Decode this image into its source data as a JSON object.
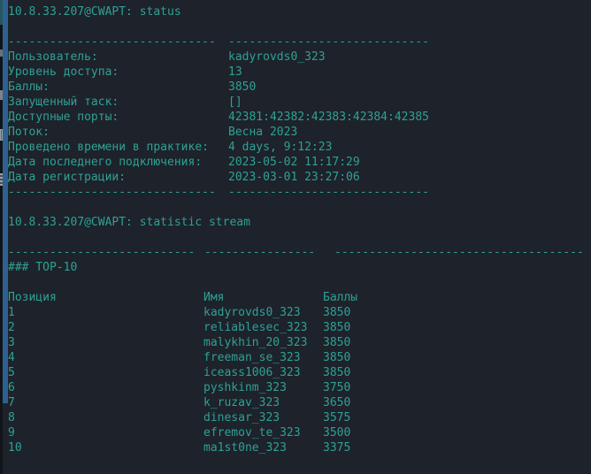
{
  "colors": {
    "background": "#1d222b",
    "text_teal": "#2fa193",
    "edge_bar_blue": "#2e6191",
    "sliver_teal": "#27565e"
  },
  "status": {
    "command": "10.8.33.207@CWAPT: status",
    "sep_left": "------------------------------",
    "sep_right": "-----------------------------",
    "fields": [
      {
        "label": "Пользователь:",
        "value": "kadyrovds0_323"
      },
      {
        "label": "Уровень доступа:",
        "value": "13"
      },
      {
        "label": "Баллы:",
        "value": "3850"
      },
      {
        "label": "Запущенный таск:",
        "value": "[]"
      },
      {
        "label": "Доступные порты:",
        "value": "42381:42382:42383:42384:42385"
      },
      {
        "label": "Поток:",
        "value": "Весна 2023"
      },
      {
        "label": "Проведено времени в практике:",
        "value": "4 days, 9:12:23"
      },
      {
        "label": "Дата последнего подключения:",
        "value": "2023-05-02 11:17:29"
      },
      {
        "label": "Дата регистрации:",
        "value": "2023-03-01 23:27:06"
      }
    ]
  },
  "statistic": {
    "command": "10.8.33.207@CWAPT: statistic stream",
    "sep1": "---------------------------",
    "sep2": "----------------",
    "sep3": "------------------------------------",
    "heading": "### TOP-10",
    "table": {
      "headers": [
        "Позиция",
        "Имя",
        "Баллы"
      ],
      "rows": [
        [
          "1",
          "kadyrovds0_323",
          "3850"
        ],
        [
          "2",
          "reliablesec_323",
          "3850"
        ],
        [
          "3",
          "malykhin_20_323",
          "3850"
        ],
        [
          "4",
          "freeman_se_323",
          "3850"
        ],
        [
          "5",
          "iceass1006_323",
          "3850"
        ],
        [
          "6",
          "pyshkinm_323",
          "3750"
        ],
        [
          "7",
          "k_ruzav_323",
          "3650"
        ],
        [
          "8",
          "dinesar_323",
          "3575"
        ],
        [
          "9",
          "efremov_te_323",
          "3500"
        ],
        [
          "10",
          "ma1st0ne_323",
          "3375"
        ]
      ]
    }
  }
}
